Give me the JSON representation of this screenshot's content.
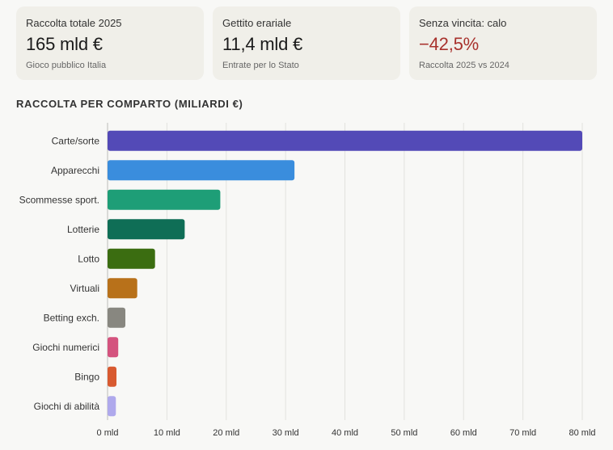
{
  "cards": [
    {
      "label": "Raccolta totale 2025",
      "value": "165 mld €",
      "sub": "Gioco pubblico Italia"
    },
    {
      "label": "Gettito erariale",
      "value": "11,4 mld €",
      "sub": "Entrate per lo Stato"
    },
    {
      "label": "Senza vincita: calo",
      "value": "−42,5%",
      "sub": "Raccolta 2025 vs 2024"
    }
  ],
  "colors": {
    "negative": "#a8322d"
  },
  "section_title": "RACCOLTA PER COMPARTO (MILIARDI €)",
  "chart_data": {
    "type": "bar",
    "orientation": "horizontal",
    "title": "RACCOLTA PER COMPARTO (MILIARDI €)",
    "xlabel": "",
    "ylabel": "",
    "xlim": [
      0,
      80
    ],
    "tick_values": [
      0,
      10,
      20,
      30,
      40,
      50,
      60,
      70,
      80
    ],
    "tick_labels": [
      "0 mld",
      "10 mld",
      "20 mld",
      "30 mld",
      "40 mld",
      "50 mld",
      "60 mld",
      "70 mld",
      "80 mld"
    ],
    "grid": true,
    "categories": [
      "Carte/sorte",
      "Apparecchi",
      "Scommesse sport.",
      "Lotterie",
      "Lotto",
      "Virtuali",
      "Betting exch.",
      "Giochi numerici",
      "Bingo",
      "Giochi di abilità"
    ],
    "values": [
      80,
      31.5,
      19,
      13,
      8,
      5,
      3,
      1.8,
      1.5,
      1.4
    ],
    "colors": [
      "#534ab7",
      "#3a8ddd",
      "#1e9e77",
      "#0f6e56",
      "#3b6d11",
      "#b8711a",
      "#888780",
      "#d4537e",
      "#d85a30",
      "#afa9ec"
    ]
  }
}
